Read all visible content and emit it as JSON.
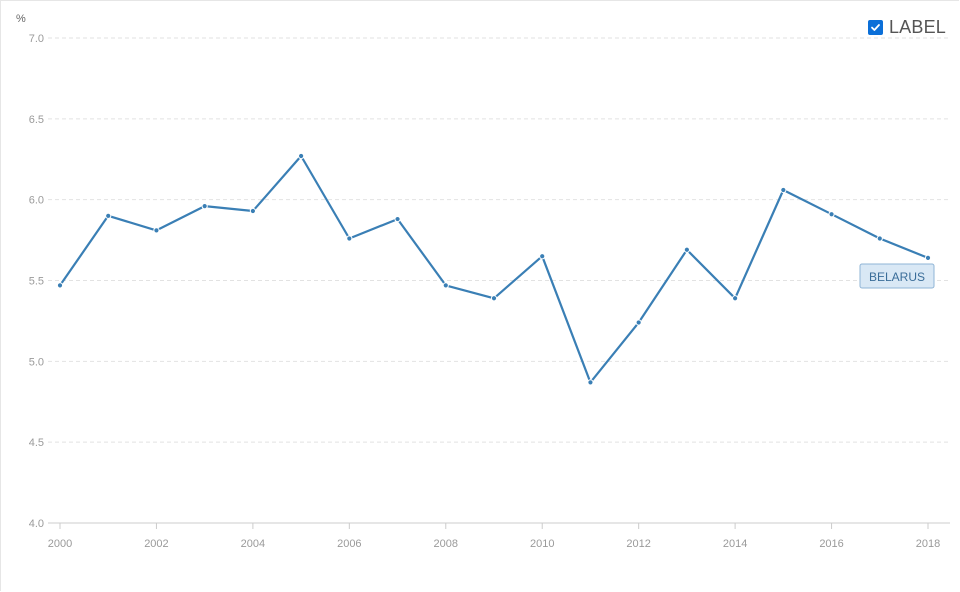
{
  "controls": {
    "label_toggle": {
      "text": "LABEL",
      "checked": true,
      "color": "#0b6fd8"
    }
  },
  "chart_data": {
    "type": "line",
    "unit": "%",
    "x": [
      2000,
      2001,
      2002,
      2003,
      2004,
      2005,
      2006,
      2007,
      2008,
      2009,
      2010,
      2011,
      2012,
      2013,
      2014,
      2015,
      2016,
      2017,
      2018
    ],
    "series": [
      {
        "name": "BELARUS",
        "color": "#3a7fb5",
        "values": [
          5.47,
          5.9,
          5.81,
          5.96,
          5.93,
          6.27,
          5.76,
          5.88,
          5.47,
          5.39,
          5.65,
          4.87,
          5.24,
          5.69,
          5.39,
          6.06,
          5.91,
          5.76,
          5.64
        ]
      }
    ],
    "xlim": [
      2000,
      2018
    ],
    "ylim": [
      4.0,
      7.0
    ],
    "xticks": [
      "2000",
      "2002",
      "2004",
      "2006",
      "2008",
      "2010",
      "2012",
      "2014",
      "2016",
      "2018"
    ],
    "yticks": [
      "4.0",
      "4.5",
      "5.0",
      "5.5",
      "6.0",
      "6.5",
      "7.0"
    ],
    "grid": "horizontal dashed",
    "legend": "series label at end of line"
  }
}
